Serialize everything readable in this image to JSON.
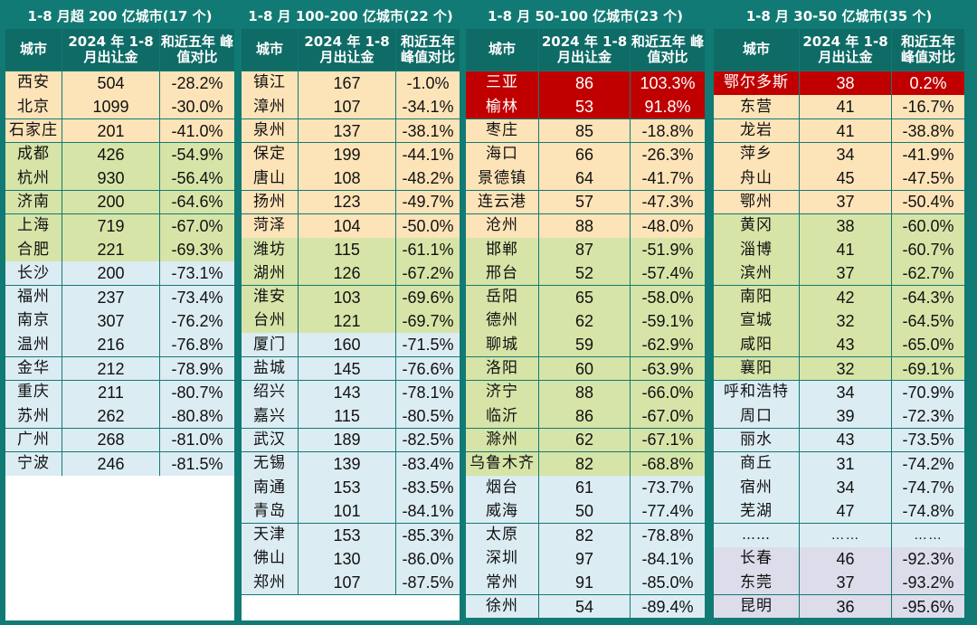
{
  "colors": {
    "frame": "#117a74",
    "title_bg": "#117a74",
    "header_bg": "#0f6b66",
    "tier_orange": "#fde3b8",
    "tier_green": "#d6e4a8",
    "tier_blue": "#dcecf3",
    "tier_red": "#c00000",
    "tier_lavender": "#dcdceb",
    "blank": "#ffffff"
  },
  "column_headers": [
    "城市",
    "2024 年 1-8 月出让金",
    "和近五年 峰值对比"
  ],
  "groups": [
    {
      "title": "1-8 月超 200 亿城市(17 个)",
      "rows": [
        {
          "city": "西安",
          "value": "504",
          "change": "-28.2%",
          "tier": "orange"
        },
        {
          "city": "北京",
          "value": "1099",
          "change": "-30.0%",
          "tier": "orange"
        },
        {
          "city": "石家庄",
          "value": "201",
          "change": "-41.0%",
          "tier": "orange"
        },
        {
          "city": "成都",
          "value": "426",
          "change": "-54.9%",
          "tier": "green"
        },
        {
          "city": "杭州",
          "value": "930",
          "change": "-56.4%",
          "tier": "green"
        },
        {
          "city": "济南",
          "value": "200",
          "change": "-64.6%",
          "tier": "green"
        },
        {
          "city": "上海",
          "value": "719",
          "change": "-67.0%",
          "tier": "green"
        },
        {
          "city": "合肥",
          "value": "221",
          "change": "-69.3%",
          "tier": "green"
        },
        {
          "city": "长沙",
          "value": "200",
          "change": "-73.1%",
          "tier": "blue"
        },
        {
          "city": "福州",
          "value": "237",
          "change": "-73.4%",
          "tier": "blue"
        },
        {
          "city": "南京",
          "value": "307",
          "change": "-76.2%",
          "tier": "blue"
        },
        {
          "city": "温州",
          "value": "216",
          "change": "-76.8%",
          "tier": "blue"
        },
        {
          "city": "金华",
          "value": "212",
          "change": "-78.9%",
          "tier": "blue"
        },
        {
          "city": "重庆",
          "value": "211",
          "change": "-80.7%",
          "tier": "blue"
        },
        {
          "city": "苏州",
          "value": "262",
          "change": "-80.8%",
          "tier": "blue"
        },
        {
          "city": "广州",
          "value": "268",
          "change": "-81.0%",
          "tier": "blue"
        },
        {
          "city": "宁波",
          "value": "246",
          "change": "-81.5%",
          "tier": "blue"
        }
      ]
    },
    {
      "title": "1-8 月 100-200 亿城市(22 个)",
      "rows": [
        {
          "city": "镇江",
          "value": "167",
          "change": "-1.0%",
          "tier": "orange"
        },
        {
          "city": "漳州",
          "value": "107",
          "change": "-34.1%",
          "tier": "orange"
        },
        {
          "city": "泉州",
          "value": "137",
          "change": "-38.1%",
          "tier": "orange"
        },
        {
          "city": "保定",
          "value": "199",
          "change": "-44.1%",
          "tier": "orange"
        },
        {
          "city": "唐山",
          "value": "108",
          "change": "-48.2%",
          "tier": "orange"
        },
        {
          "city": "扬州",
          "value": "123",
          "change": "-49.7%",
          "tier": "orange"
        },
        {
          "city": "菏泽",
          "value": "104",
          "change": "-50.0%",
          "tier": "orange"
        },
        {
          "city": "潍坊",
          "value": "115",
          "change": "-61.1%",
          "tier": "green"
        },
        {
          "city": "湖州",
          "value": "126",
          "change": "-67.2%",
          "tier": "green"
        },
        {
          "city": "淮安",
          "value": "103",
          "change": "-69.6%",
          "tier": "green"
        },
        {
          "city": "台州",
          "value": "121",
          "change": "-69.7%",
          "tier": "green"
        },
        {
          "city": "厦门",
          "value": "160",
          "change": "-71.5%",
          "tier": "blue"
        },
        {
          "city": "盐城",
          "value": "145",
          "change": "-76.6%",
          "tier": "blue"
        },
        {
          "city": "绍兴",
          "value": "143",
          "change": "-78.1%",
          "tier": "blue"
        },
        {
          "city": "嘉兴",
          "value": "115",
          "change": "-80.5%",
          "tier": "blue"
        },
        {
          "city": "武汉",
          "value": "189",
          "change": "-82.5%",
          "tier": "blue"
        },
        {
          "city": "无锡",
          "value": "139",
          "change": "-83.4%",
          "tier": "blue"
        },
        {
          "city": "南通",
          "value": "153",
          "change": "-83.5%",
          "tier": "blue"
        },
        {
          "city": "青岛",
          "value": "101",
          "change": "-84.1%",
          "tier": "blue"
        },
        {
          "city": "天津",
          "value": "153",
          "change": "-85.3%",
          "tier": "blue"
        },
        {
          "city": "佛山",
          "value": "130",
          "change": "-86.0%",
          "tier": "blue"
        },
        {
          "city": "郑州",
          "value": "107",
          "change": "-87.5%",
          "tier": "blue"
        }
      ]
    },
    {
      "title": "1-8 月 50-100 亿城市(23 个)",
      "rows": [
        {
          "city": "三亚",
          "value": "86",
          "change": "103.3%",
          "tier": "red"
        },
        {
          "city": "榆林",
          "value": "53",
          "change": "91.8%",
          "tier": "red"
        },
        {
          "city": "枣庄",
          "value": "85",
          "change": "-18.8%",
          "tier": "orange"
        },
        {
          "city": "海口",
          "value": "66",
          "change": "-26.3%",
          "tier": "orange"
        },
        {
          "city": "景德镇",
          "value": "64",
          "change": "-41.7%",
          "tier": "orange"
        },
        {
          "city": "连云港",
          "value": "57",
          "change": "-47.3%",
          "tier": "orange"
        },
        {
          "city": "沧州",
          "value": "88",
          "change": "-48.0%",
          "tier": "orange"
        },
        {
          "city": "邯郸",
          "value": "87",
          "change": "-51.9%",
          "tier": "green"
        },
        {
          "city": "邢台",
          "value": "52",
          "change": "-57.4%",
          "tier": "green"
        },
        {
          "city": "岳阳",
          "value": "65",
          "change": "-58.0%",
          "tier": "green"
        },
        {
          "city": "德州",
          "value": "62",
          "change": "-59.1%",
          "tier": "green"
        },
        {
          "city": "聊城",
          "value": "59",
          "change": "-62.9%",
          "tier": "green"
        },
        {
          "city": "洛阳",
          "value": "60",
          "change": "-63.9%",
          "tier": "green"
        },
        {
          "city": "济宁",
          "value": "88",
          "change": "-66.0%",
          "tier": "green"
        },
        {
          "city": "临沂",
          "value": "86",
          "change": "-67.0%",
          "tier": "green"
        },
        {
          "city": "滁州",
          "value": "62",
          "change": "-67.1%",
          "tier": "green"
        },
        {
          "city": "乌鲁木齐",
          "value": "82",
          "change": "-68.8%",
          "tier": "green"
        },
        {
          "city": "烟台",
          "value": "61",
          "change": "-73.7%",
          "tier": "blue"
        },
        {
          "city": "威海",
          "value": "50",
          "change": "-77.4%",
          "tier": "blue"
        },
        {
          "city": "太原",
          "value": "82",
          "change": "-78.8%",
          "tier": "blue"
        },
        {
          "city": "深圳",
          "value": "97",
          "change": "-84.1%",
          "tier": "blue"
        },
        {
          "city": "常州",
          "value": "91",
          "change": "-85.0%",
          "tier": "blue"
        },
        {
          "city": "徐州",
          "value": "54",
          "change": "-89.4%",
          "tier": "blue"
        }
      ]
    },
    {
      "title": "1-8 月 30-50 亿城市(35 个)",
      "rows": [
        {
          "city": "鄂尔多斯",
          "value": "38",
          "change": "0.2%",
          "tier": "red"
        },
        {
          "city": "东营",
          "value": "41",
          "change": "-16.7%",
          "tier": "orange"
        },
        {
          "city": "龙岩",
          "value": "41",
          "change": "-38.8%",
          "tier": "orange"
        },
        {
          "city": "萍乡",
          "value": "34",
          "change": "-41.9%",
          "tier": "orange"
        },
        {
          "city": "舟山",
          "value": "45",
          "change": "-47.5%",
          "tier": "orange"
        },
        {
          "city": "鄂州",
          "value": "37",
          "change": "-50.4%",
          "tier": "orange"
        },
        {
          "city": "黄冈",
          "value": "38",
          "change": "-60.0%",
          "tier": "green"
        },
        {
          "city": "淄博",
          "value": "41",
          "change": "-60.7%",
          "tier": "green"
        },
        {
          "city": "滨州",
          "value": "37",
          "change": "-62.7%",
          "tier": "green"
        },
        {
          "city": "南阳",
          "value": "42",
          "change": "-64.3%",
          "tier": "green"
        },
        {
          "city": "宣城",
          "value": "32",
          "change": "-64.5%",
          "tier": "green"
        },
        {
          "city": "咸阳",
          "value": "43",
          "change": "-65.0%",
          "tier": "green"
        },
        {
          "city": "襄阳",
          "value": "32",
          "change": "-69.1%",
          "tier": "green"
        },
        {
          "city": "呼和浩特",
          "value": "34",
          "change": "-70.9%",
          "tier": "blue"
        },
        {
          "city": "周口",
          "value": "39",
          "change": "-72.3%",
          "tier": "blue"
        },
        {
          "city": "丽水",
          "value": "43",
          "change": "-73.5%",
          "tier": "blue"
        },
        {
          "city": "商丘",
          "value": "31",
          "change": "-74.2%",
          "tier": "blue"
        },
        {
          "city": "宿州",
          "value": "34",
          "change": "-74.7%",
          "tier": "blue"
        },
        {
          "city": "芜湖",
          "value": "47",
          "change": "-74.8%",
          "tier": "blue"
        },
        {
          "city": "……",
          "value": "……",
          "change": "……",
          "tier": "blue"
        },
        {
          "city": "长春",
          "value": "46",
          "change": "-92.3%",
          "tier": "lavender"
        },
        {
          "city": "东莞",
          "value": "37",
          "change": "-93.2%",
          "tier": "lavender"
        },
        {
          "city": "昆明",
          "value": "36",
          "change": "-95.6%",
          "tier": "lavender"
        }
      ]
    }
  ]
}
